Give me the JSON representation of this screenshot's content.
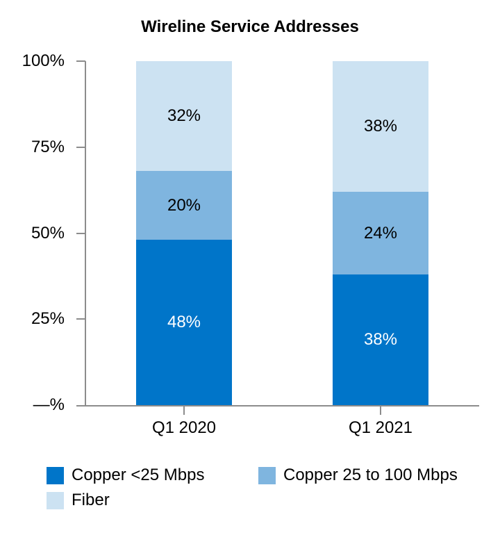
{
  "chart_data": {
    "type": "bar",
    "stacked": true,
    "title": "Wireline Service Addresses",
    "categories": [
      "Q1 2020",
      "Q1 2021"
    ],
    "series": [
      {
        "name": "Copper <25 Mbps",
        "color": "#0075C9",
        "label_color": "#ffffff",
        "values": [
          48,
          38
        ],
        "labels": [
          "48%",
          "38%"
        ]
      },
      {
        "name": "Copper 25 to 100 Mbps",
        "color": "#7FB5DF",
        "label_color": "#000000",
        "values": [
          20,
          24
        ],
        "labels": [
          "20%",
          "24%"
        ]
      },
      {
        "name": "Fiber",
        "color": "#CCE2F2",
        "label_color": "#000000",
        "values": [
          32,
          38
        ],
        "labels": [
          "32%",
          "38%"
        ]
      }
    ],
    "stack_order_bottom_to_top": [
      "Copper <25 Mbps",
      "Copper 25 to 100 Mbps",
      "Fiber"
    ],
    "y_axis": {
      "range": [
        0,
        100
      ],
      "tick_values": [
        100,
        75,
        50,
        25,
        0
      ],
      "tick_labels": [
        "100%",
        "75%",
        "50%",
        "25%",
        "—%"
      ]
    },
    "grid": false,
    "legend_position": "bottom-left"
  },
  "colors": {
    "axis": "#8C8C8C",
    "text": "#000000",
    "background": "#FFFFFF"
  }
}
